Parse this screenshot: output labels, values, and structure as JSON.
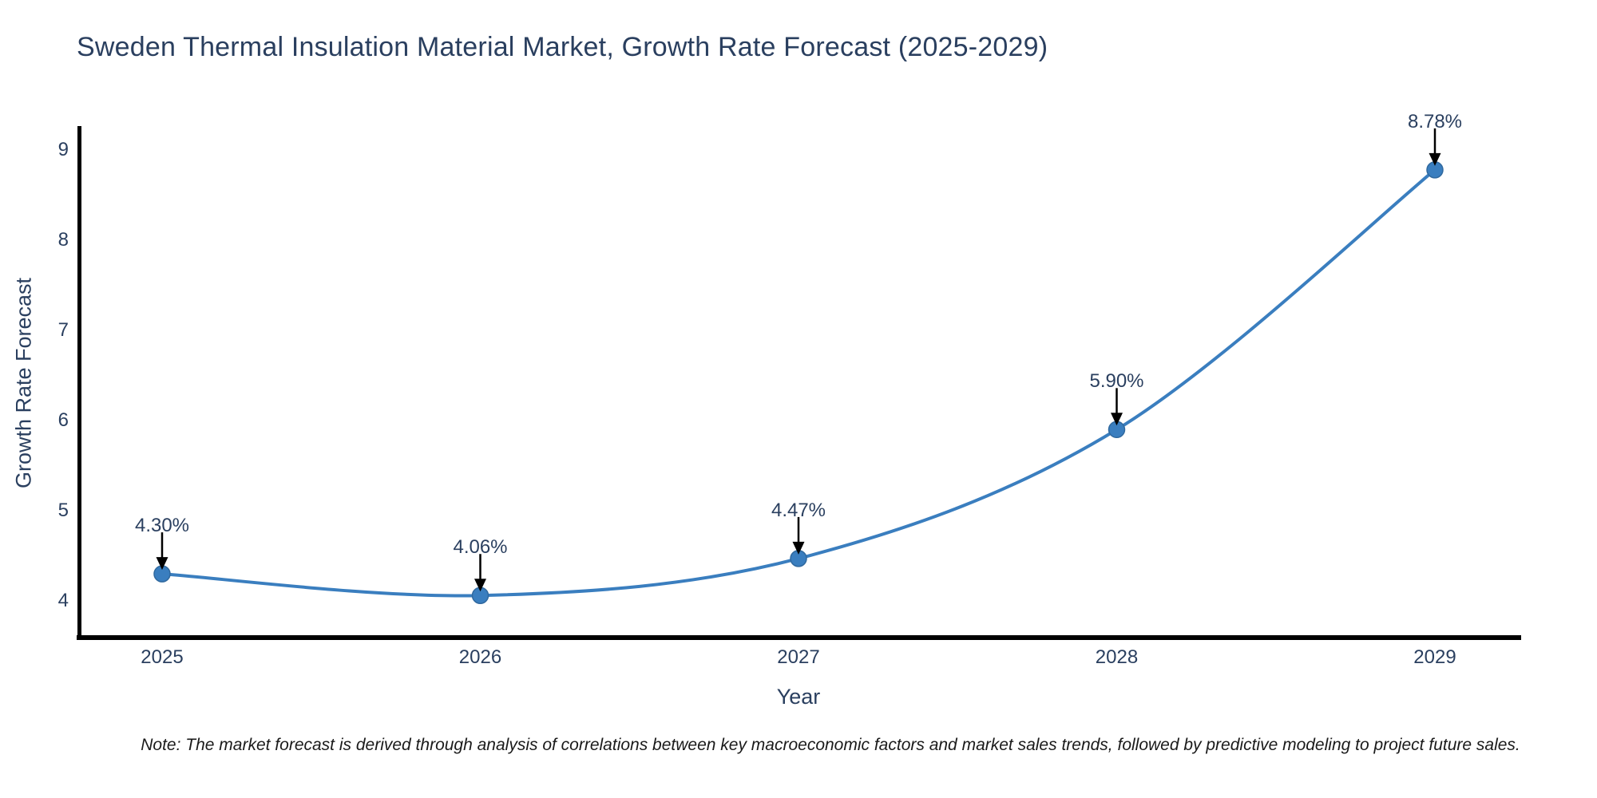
{
  "page": {
    "background": "#ffffff"
  },
  "note": "Note: The market forecast is derived through analysis of correlations between key macroeconomic factors and market sales trends, followed by predictive modeling to project future sales.",
  "chart_data": {
    "type": "line",
    "title": "Sweden Thermal Insulation Material Market, Growth Rate Forecast (2025-2029)",
    "xlabel": "Year",
    "ylabel": "Growth Rate Forecast",
    "x": [
      2025,
      2026,
      2027,
      2028,
      2029
    ],
    "x_tick_labels": [
      "2025",
      "2026",
      "2027",
      "2028",
      "2029"
    ],
    "series": [
      {
        "name": "Growth Rate Forecast",
        "values": [
          4.3,
          4.06,
          4.47,
          5.9,
          8.78
        ]
      }
    ],
    "point_labels": [
      "4.30%",
      "4.06%",
      "4.47%",
      "5.90%",
      "8.78%"
    ],
    "y_ticks": [
      4,
      5,
      6,
      7,
      8,
      9
    ],
    "ylim": [
      3.57,
      9.27
    ],
    "xlim": [
      2024.74,
      2029.27
    ],
    "line_shape": "spline",
    "grid": false,
    "legend": "none",
    "annotation_style": "value label with downward black arrow onto each marker",
    "line_color": "#3a7ebf",
    "marker_color": "#3a7ebf",
    "marker_edge_color": "#30699f",
    "arrow_color": "#000000",
    "axis_line_color": "#000000",
    "text_color": "#2a3f5f"
  }
}
